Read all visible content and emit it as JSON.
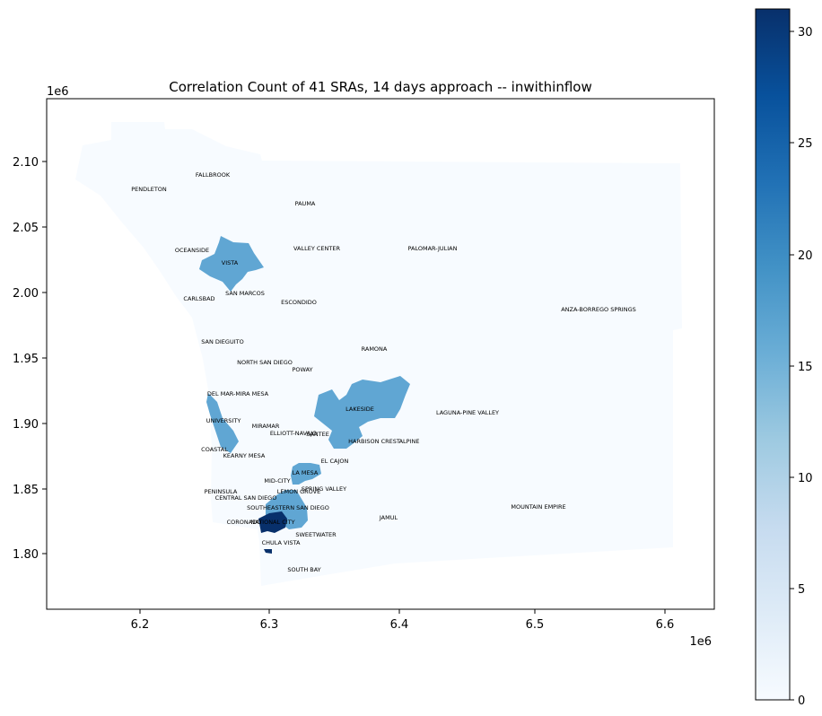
{
  "title": "Correlation Count of 41 SRAs, 14 days approach -- inwithinflow",
  "axes": {
    "x_offset_label": "1e6",
    "y_offset_label": "1e6",
    "x_ticks": [
      "6.2",
      "6.3",
      "6.4",
      "6.5",
      "6.6"
    ],
    "y_ticks": [
      "2.10",
      "2.05",
      "2.00",
      "1.95",
      "1.90",
      "1.85",
      "1.80"
    ]
  },
  "colorbar": {
    "min": 0,
    "max": 31,
    "ticks": [
      "0",
      "5",
      "10",
      "15",
      "20",
      "25",
      "30"
    ],
    "colormap": "Blues",
    "low_color": "#f7fbff",
    "high_color": "#08306b"
  },
  "regions": {
    "north_county": {
      "value": 0,
      "color": "#f7fbff"
    },
    "vista": {
      "value": 16,
      "color": "#60a6d3"
    },
    "lakeside": {
      "value": 16,
      "color": "#60a6d3"
    },
    "university": {
      "value": 16,
      "color": "#60a6d3"
    },
    "la_mesa": {
      "value": 16,
      "color": "#60a6d3"
    },
    "southeastern": {
      "value": 16,
      "color": "#60a6d3"
    },
    "national_city": {
      "value": 31,
      "color": "#08306b"
    },
    "chula_vista_strip": {
      "value": 31,
      "color": "#08306b"
    }
  },
  "sra_labels": [
    "FALLBROOK",
    "PENDLETON",
    "PAUMA",
    "OCEANSIDE",
    "VISTA",
    "VALLEY CENTER",
    "PALOMAR-JULIAN",
    "CARLSBAD",
    "SAN MARCOS",
    "ESCONDIDO",
    "ANZA-BORREGO SPRINGS",
    "SAN DIEGUITO",
    "RAMONA",
    "NORTH SAN DIEGO",
    "POWAY",
    "DEL MAR-MIRA MESA",
    "LAKESIDE",
    "LAGUNA-PINE VALLEY",
    "UNIVERSITY",
    "MIRAMAR",
    "ELLIOTT-NAVAJO",
    "SANTEE",
    "HARBISON CREST",
    "ALPINE",
    "COASTAL",
    "KEARNY MESA",
    "EL CAJON",
    "LA MESA",
    "MID-CITY",
    "SPRING VALLEY",
    "PENINSULA",
    "LEMON GROVE",
    "CENTRAL SAN DIEGO",
    "SOUTHEASTERN SAN DIEGO",
    "MOUNTAIN EMPIRE",
    "JAMUL",
    "CORONADO",
    "NATIONAL CITY",
    "SWEETWATER",
    "CHULA VISTA",
    "SOUTH BAY"
  ]
}
